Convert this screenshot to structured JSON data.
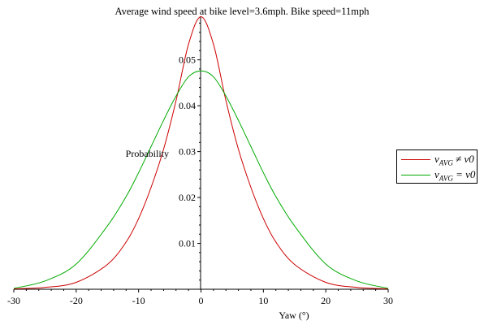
{
  "chart_data": {
    "type": "line",
    "title": "Average wind speed at bike level=3.6mph. Bike speed=11mph",
    "xlabel": "Yaw (°)",
    "ylabel": "Probability",
    "xlim": [
      -30,
      30
    ],
    "ylim": [
      0,
      0.0595
    ],
    "x_ticks": [
      "-30",
      "-20",
      "-10",
      "0",
      "10",
      "20",
      "30"
    ],
    "y_ticks": [
      "0.01",
      "0.02",
      "0.03",
      "0.04",
      "0.05"
    ],
    "grid": false,
    "legend_position": "right",
    "series": [
      {
        "name": "vAVG ≠ v0",
        "legend_main": "v",
        "legend_sub": "AVG",
        "legend_tail": " ≠ v0",
        "color": "#cc0000",
        "x": [
          -30,
          -25,
          -20,
          -15,
          -12,
          -10,
          -8,
          -6,
          -4,
          -2,
          0,
          2,
          4,
          6,
          8,
          10,
          12,
          15,
          20,
          25,
          30
        ],
        "y": [
          0.0001,
          0.0004,
          0.0015,
          0.0054,
          0.0103,
          0.0154,
          0.0222,
          0.0305,
          0.0411,
          0.0534,
          0.0594,
          0.0534,
          0.0411,
          0.0305,
          0.0222,
          0.0154,
          0.0103,
          0.0054,
          0.0015,
          0.0004,
          0.0001
        ]
      },
      {
        "name": "vAVG = v0",
        "legend_main": "v",
        "legend_sub": "AVG",
        "legend_tail": " = v0",
        "color": "#00aa00",
        "x": [
          -30,
          -25,
          -20,
          -15,
          -12,
          -10,
          -8,
          -6,
          -4,
          -2,
          0,
          2,
          4,
          6,
          8,
          10,
          12,
          15,
          20,
          25,
          30
        ],
        "y": [
          0.0002,
          0.0018,
          0.0055,
          0.0138,
          0.0202,
          0.0254,
          0.0311,
          0.0368,
          0.0421,
          0.0463,
          0.0476,
          0.0463,
          0.0421,
          0.0368,
          0.0311,
          0.0254,
          0.0202,
          0.0138,
          0.0055,
          0.0018,
          0.0002
        ]
      }
    ]
  }
}
